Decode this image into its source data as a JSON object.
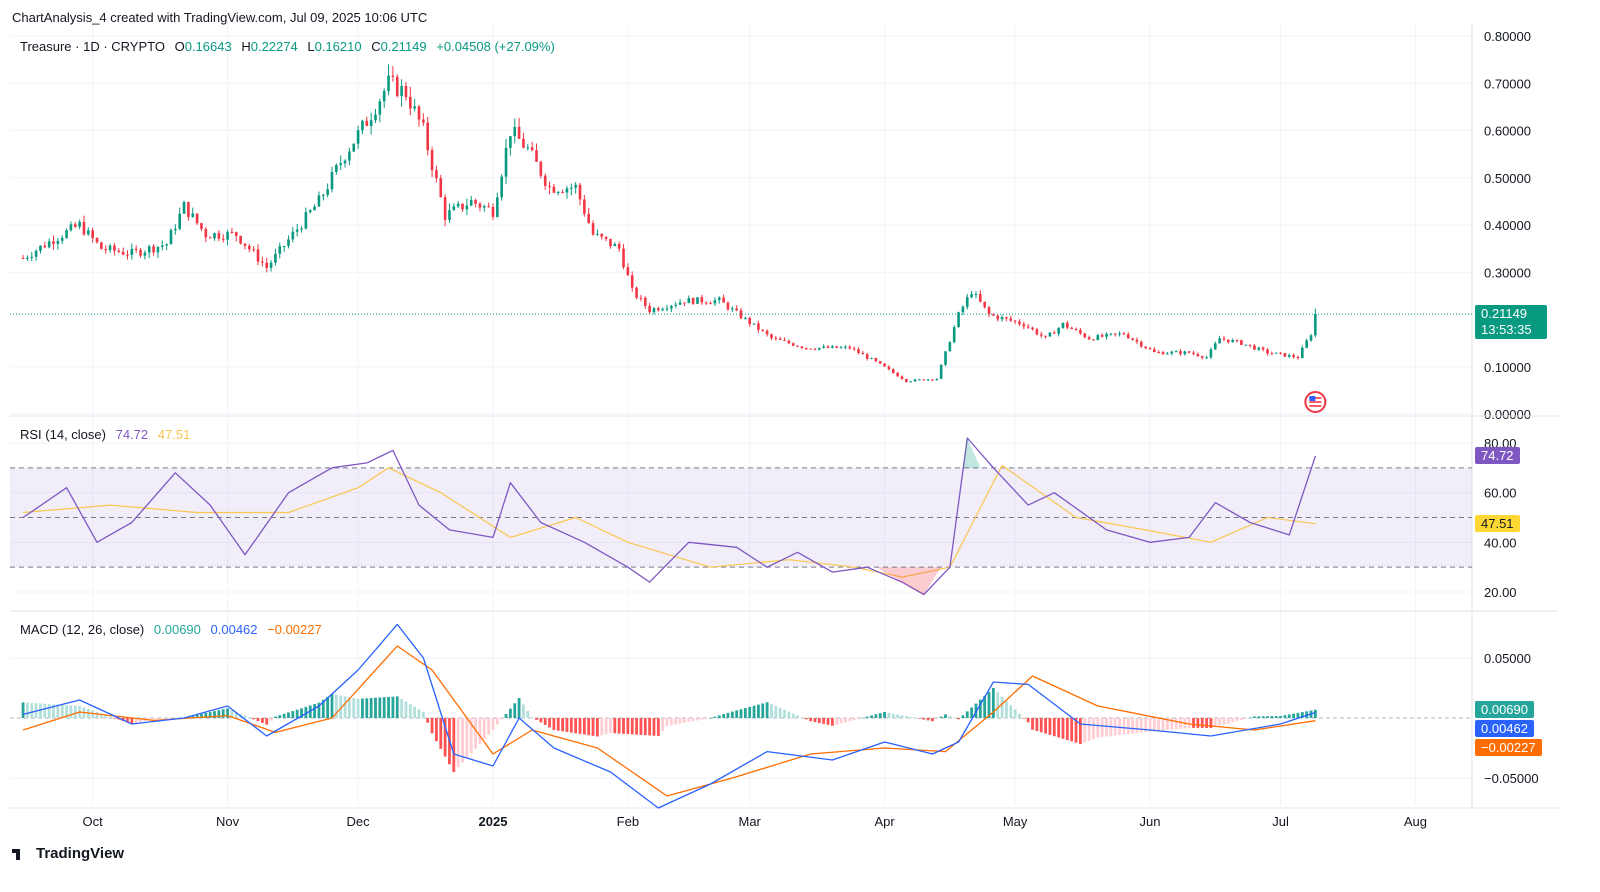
{
  "header": {
    "attribution": "ChartAnalysis_4 created with TradingView.com, Jul 09, 2025 10:06 UTC"
  },
  "main_legend": {
    "symbol": "Treasure · 1D · CRYPTO",
    "o_label": "O",
    "o_value": "0.16643",
    "h_label": "H",
    "h_value": "0.22274",
    "l_label": "L",
    "l_value": "0.16210",
    "c_label": "C",
    "c_value": "0.21149",
    "change": "+0.04508 (+27.09%)"
  },
  "price_badge": {
    "price": "0.21149",
    "countdown": "13:53:35"
  },
  "rsi_legend": {
    "label": "RSI (14, close)",
    "rsi": "74.72",
    "ma": "47.51"
  },
  "macd_legend": {
    "label": "MACD (12, 26, close)",
    "hist": "0.00690",
    "macd": "0.00462",
    "signal": "−0.00227"
  },
  "brand": "TradingView",
  "colors": {
    "up": "#089981",
    "down": "#f23645",
    "rsi": "#7e57c2",
    "rsi_ma": "#fdd835",
    "macd": "#2962ff",
    "signal": "#ff6d00"
  },
  "chart_data": [
    {
      "type": "candlestick",
      "title": "Treasure · 1D · CRYPTO",
      "x_ticks": [
        "Oct",
        "Nov",
        "Dec",
        "2025",
        "Feb",
        "Mar",
        "Apr",
        "May",
        "Jun",
        "Jul",
        "Aug"
      ],
      "y_ticks": [
        "0.80000",
        "0.70000",
        "0.60000",
        "0.50000",
        "0.40000",
        "0.30000",
        "0.10000",
        "0.00000"
      ],
      "ylim": [
        0,
        0.8
      ],
      "last_price": 0.21149,
      "close_path": [
        [
          "2024-09-15",
          0.33
        ],
        [
          "2024-09-22",
          0.37
        ],
        [
          "2024-09-28",
          0.4
        ],
        [
          "2024-10-03",
          0.35
        ],
        [
          "2024-10-10",
          0.34
        ],
        [
          "2024-10-18",
          0.36
        ],
        [
          "2024-10-22",
          0.44
        ],
        [
          "2024-10-27",
          0.38
        ],
        [
          "2024-11-03",
          0.38
        ],
        [
          "2024-11-10",
          0.31
        ],
        [
          "2024-11-16",
          0.38
        ],
        [
          "2024-11-22",
          0.45
        ],
        [
          "2024-11-28",
          0.55
        ],
        [
          "2024-12-03",
          0.62
        ],
        [
          "2024-12-08",
          0.7
        ],
        [
          "2024-12-12",
          0.68
        ],
        [
          "2024-12-16",
          0.6
        ],
        [
          "2024-12-21",
          0.42
        ],
        [
          "2024-12-27",
          0.45
        ],
        [
          "2025-01-01",
          0.43
        ],
        [
          "2025-01-05",
          0.6
        ],
        [
          "2025-01-09",
          0.56
        ],
        [
          "2025-01-14",
          0.48
        ],
        [
          "2025-01-20",
          0.48
        ],
        [
          "2025-01-24",
          0.38
        ],
        [
          "2025-01-30",
          0.35
        ],
        [
          "2025-02-02",
          0.26
        ],
        [
          "2025-02-06",
          0.22
        ],
        [
          "2025-02-14",
          0.24
        ],
        [
          "2025-02-22",
          0.24
        ],
        [
          "2025-02-28",
          0.2
        ],
        [
          "2025-03-06",
          0.16
        ],
        [
          "2025-03-14",
          0.14
        ],
        [
          "2025-03-24",
          0.14
        ],
        [
          "2025-03-30",
          0.11
        ],
        [
          "2025-04-06",
          0.07
        ],
        [
          "2025-04-13",
          0.075
        ],
        [
          "2025-04-18",
          0.21
        ],
        [
          "2025-04-21",
          0.26
        ],
        [
          "2025-04-25",
          0.21
        ],
        [
          "2025-05-03",
          0.19
        ],
        [
          "2025-05-08",
          0.16
        ],
        [
          "2025-05-12",
          0.19
        ],
        [
          "2025-05-18",
          0.16
        ],
        [
          "2025-05-26",
          0.17
        ],
        [
          "2025-06-02",
          0.13
        ],
        [
          "2025-06-10",
          0.13
        ],
        [
          "2025-06-14",
          0.12
        ],
        [
          "2025-06-17",
          0.16
        ],
        [
          "2025-06-22",
          0.15
        ],
        [
          "2025-06-28",
          0.13
        ],
        [
          "2025-07-05",
          0.12
        ],
        [
          "2025-07-08",
          0.17
        ],
        [
          "2025-07-09",
          0.21149
        ]
      ]
    },
    {
      "type": "line",
      "title": "RSI (14, close)",
      "y_ticks": [
        "80.00",
        "60.00",
        "40.00",
        "20.00"
      ],
      "ylim": [
        15,
        85
      ],
      "bands": [
        30,
        50,
        70
      ],
      "series": [
        {
          "name": "RSI",
          "last": 74.72,
          "values": [
            [
              "2024-09-15",
              50
            ],
            [
              "2024-09-25",
              62
            ],
            [
              "2024-10-02",
              40
            ],
            [
              "2024-10-10",
              48
            ],
            [
              "2024-10-20",
              68
            ],
            [
              "2024-10-28",
              55
            ],
            [
              "2024-11-05",
              35
            ],
            [
              "2024-11-15",
              60
            ],
            [
              "2024-11-25",
              70
            ],
            [
              "2024-12-03",
              72
            ],
            [
              "2024-12-09",
              77
            ],
            [
              "2024-12-15",
              55
            ],
            [
              "2024-12-22",
              45
            ],
            [
              "2025-01-01",
              42
            ],
            [
              "2025-01-05",
              64
            ],
            [
              "2025-01-12",
              48
            ],
            [
              "2025-01-22",
              40
            ],
            [
              "2025-02-01",
              30
            ],
            [
              "2025-02-06",
              24
            ],
            [
              "2025-02-15",
              40
            ],
            [
              "2025-02-26",
              38
            ],
            [
              "2025-03-05",
              30
            ],
            [
              "2025-03-12",
              36
            ],
            [
              "2025-03-20",
              28
            ],
            [
              "2025-03-28",
              30
            ],
            [
              "2025-04-05",
              24
            ],
            [
              "2025-04-10",
              19
            ],
            [
              "2025-04-16",
              30
            ],
            [
              "2025-04-20",
              82
            ],
            [
              "2025-04-26",
              70
            ],
            [
              "2025-05-04",
              55
            ],
            [
              "2025-05-10",
              60
            ],
            [
              "2025-05-22",
              45
            ],
            [
              "2025-06-01",
              40
            ],
            [
              "2025-06-10",
              42
            ],
            [
              "2025-06-16",
              56
            ],
            [
              "2025-06-24",
              48
            ],
            [
              "2025-07-03",
              43
            ],
            [
              "2025-07-09",
              74.72
            ]
          ]
        },
        {
          "name": "RSI-based MA",
          "last": 47.51,
          "values": [
            [
              "2024-09-15",
              52
            ],
            [
              "2024-10-05",
              55
            ],
            [
              "2024-10-25",
              52
            ],
            [
              "2024-11-15",
              52
            ],
            [
              "2024-12-01",
              62
            ],
            [
              "2024-12-08",
              70
            ],
            [
              "2024-12-20",
              60
            ],
            [
              "2025-01-05",
              42
            ],
            [
              "2025-01-20",
              50
            ],
            [
              "2025-02-01",
              40
            ],
            [
              "2025-02-20",
              30
            ],
            [
              "2025-03-10",
              33
            ],
            [
              "2025-03-25",
              30
            ],
            [
              "2025-04-05",
              26
            ],
            [
              "2025-04-16",
              30
            ],
            [
              "2025-04-28",
              71
            ],
            [
              "2025-05-15",
              50
            ],
            [
              "2025-05-31",
              45
            ],
            [
              "2025-06-15",
              40
            ],
            [
              "2025-06-28",
              50
            ],
            [
              "2025-07-09",
              47.51
            ]
          ]
        }
      ]
    },
    {
      "type": "line",
      "title": "MACD (12, 26, close)",
      "y_ticks": [
        "0.05000",
        "−0.05000"
      ],
      "ylim": [
        -0.075,
        0.08
      ],
      "series": [
        {
          "name": "MACD",
          "last": 0.00462,
          "values": [
            [
              "2024-09-15",
              0.003
            ],
            [
              "2024-09-28",
              0.015
            ],
            [
              "2024-10-10",
              -0.005
            ],
            [
              "2024-10-22",
              0.0
            ],
            [
              "2024-11-01",
              0.01
            ],
            [
              "2024-11-10",
              -0.015
            ],
            [
              "2024-11-22",
              0.01
            ],
            [
              "2024-12-01",
              0.04
            ],
            [
              "2024-12-10",
              0.078
            ],
            [
              "2024-12-16",
              0.05
            ],
            [
              "2024-12-23",
              -0.03
            ],
            [
              "2025-01-01",
              -0.04
            ],
            [
              "2025-01-07",
              0.0
            ],
            [
              "2025-01-15",
              -0.025
            ],
            [
              "2025-01-28",
              -0.045
            ],
            [
              "2025-02-08",
              -0.075
            ],
            [
              "2025-02-20",
              -0.055
            ],
            [
              "2025-03-05",
              -0.028
            ],
            [
              "2025-03-20",
              -0.035
            ],
            [
              "2025-04-01",
              -0.02
            ],
            [
              "2025-04-12",
              -0.03
            ],
            [
              "2025-04-18",
              -0.02
            ],
            [
              "2025-04-26",
              0.03
            ],
            [
              "2025-05-04",
              0.028
            ],
            [
              "2025-05-16",
              -0.005
            ],
            [
              "2025-06-01",
              -0.01
            ],
            [
              "2025-06-15",
              -0.015
            ],
            [
              "2025-07-01",
              -0.005
            ],
            [
              "2025-07-09",
              0.00462
            ]
          ]
        },
        {
          "name": "Signal",
          "last": -0.00227,
          "values": [
            [
              "2024-09-15",
              -0.01
            ],
            [
              "2024-09-28",
              0.005
            ],
            [
              "2024-10-15",
              -0.002
            ],
            [
              "2024-11-01",
              0.002
            ],
            [
              "2024-11-12",
              -0.012
            ],
            [
              "2024-11-25",
              0.0
            ],
            [
              "2024-12-10",
              0.06
            ],
            [
              "2024-12-18",
              0.04
            ],
            [
              "2025-01-01",
              -0.03
            ],
            [
              "2025-01-10",
              -0.01
            ],
            [
              "2025-01-25",
              -0.025
            ],
            [
              "2025-02-10",
              -0.065
            ],
            [
              "2025-02-25",
              -0.05
            ],
            [
              "2025-03-15",
              -0.03
            ],
            [
              "2025-04-01",
              -0.025
            ],
            [
              "2025-04-15",
              -0.028
            ],
            [
              "2025-04-26",
              0.005
            ],
            [
              "2025-05-05",
              0.035
            ],
            [
              "2025-05-20",
              0.01
            ],
            [
              "2025-06-10",
              -0.005
            ],
            [
              "2025-06-25",
              -0.01
            ],
            [
              "2025-07-09",
              -0.00227
            ]
          ]
        },
        {
          "name": "Histogram",
          "last": 0.0069
        }
      ]
    }
  ]
}
